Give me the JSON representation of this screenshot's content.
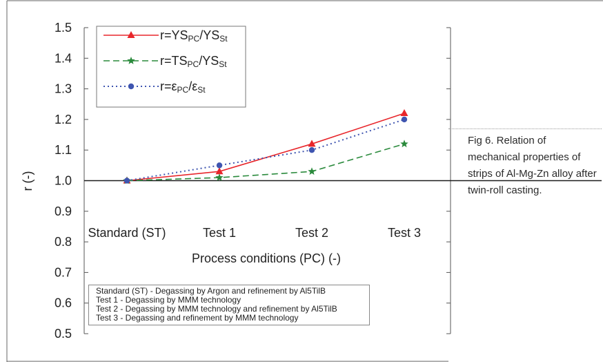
{
  "chart_data": {
    "type": "line",
    "categories": [
      "Standard (ST)",
      "Test 1",
      "Test 2",
      "Test 3"
    ],
    "ylabel": "r (-)",
    "xlabel": "Process conditions (PC) (-)",
    "ylim": [
      0.5,
      1.5
    ],
    "yticks": [
      "1.5",
      "1.4",
      "1.3",
      "1.2",
      "1.1",
      "1.0",
      "0.9",
      "0.8",
      "0.7",
      "0.6",
      "0.5"
    ],
    "reference_line": 1.0,
    "series": [
      {
        "name": "r=YSPC/YSSt",
        "legend": {
          "prefix": "r=",
          "a": "YS",
          "a_sub": "PC",
          "sep": "/",
          "b": "YS",
          "b_sub": "St"
        },
        "color": "#e8262b",
        "style": "solid",
        "marker": "triangle",
        "values": [
          1.0,
          1.03,
          1.12,
          1.22
        ]
      },
      {
        "name": "r=TSPC/YSSt",
        "legend": {
          "prefix": "r=",
          "a": "TS",
          "a_sub": "PC",
          "sep": "/",
          "b": "YS",
          "b_sub": "St"
        },
        "color": "#2a8a3c",
        "style": "dashed",
        "marker": "star",
        "values": [
          1.0,
          1.01,
          1.03,
          1.12
        ]
      },
      {
        "name": "r=εPC/εSt",
        "legend": {
          "prefix": "r=",
          "a": "ε",
          "a_sub": "PC",
          "sep": "/",
          "b": "ε",
          "b_sub": "St"
        },
        "color": "#3f55b0",
        "style": "dotted",
        "marker": "circle",
        "values": [
          1.0,
          1.05,
          1.1,
          1.2
        ]
      }
    ],
    "notes": [
      "Standard (ST) - Degassing by Argon and refinement by Al5TilB",
      "Test 1 - Degassing by MMM technology",
      "Test 2 - Degassing by MMM technology and refinement by Al5TilB",
      "Test 3 - Degassing and refinement by MMM technology"
    ]
  },
  "caption": "Fig 6. Relation of mechanical properties of strips of Al-Mg-Zn alloy after twin-roll casting."
}
